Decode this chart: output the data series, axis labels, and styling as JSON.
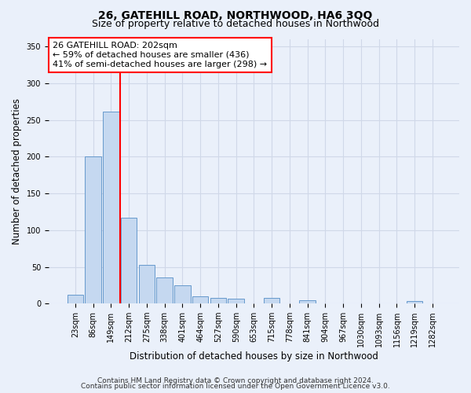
{
  "title_line1": "26, GATEHILL ROAD, NORTHWOOD, HA6 3QQ",
  "title_line2": "Size of property relative to detached houses in Northwood",
  "xlabel": "Distribution of detached houses by size in Northwood",
  "ylabel": "Number of detached properties",
  "categories": [
    "23sqm",
    "86sqm",
    "149sqm",
    "212sqm",
    "275sqm",
    "338sqm",
    "401sqm",
    "464sqm",
    "527sqm",
    "590sqm",
    "653sqm",
    "715sqm",
    "778sqm",
    "841sqm",
    "904sqm",
    "967sqm",
    "1030sqm",
    "1093sqm",
    "1156sqm",
    "1219sqm",
    "1282sqm"
  ],
  "values": [
    12,
    200,
    262,
    117,
    53,
    36,
    25,
    10,
    8,
    7,
    0,
    8,
    0,
    4,
    0,
    0,
    0,
    0,
    0,
    3,
    0
  ],
  "bar_color": "#c5d8f0",
  "bar_edge_color": "#6699cc",
  "red_line_x": 2.5,
  "annotation_text": "26 GATEHILL ROAD: 202sqm\n← 59% of detached houses are smaller (436)\n41% of semi-detached houses are larger (298) →",
  "annotation_box_color": "white",
  "annotation_box_edge_color": "red",
  "red_line_color": "red",
  "ylim": [
    0,
    360
  ],
  "yticks": [
    0,
    50,
    100,
    150,
    200,
    250,
    300,
    350
  ],
  "footer_line1": "Contains HM Land Registry data © Crown copyright and database right 2024.",
  "footer_line2": "Contains public sector information licensed under the Open Government Licence v3.0.",
  "bg_color": "#eaf0fa",
  "grid_color": "#d0d8e8",
  "title_fontsize": 10,
  "subtitle_fontsize": 9,
  "axis_label_fontsize": 8.5,
  "tick_fontsize": 7,
  "footer_fontsize": 6.5,
  "annotation_fontsize": 8
}
